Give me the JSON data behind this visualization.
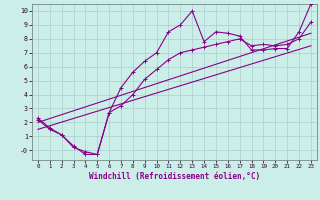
{
  "bg_color": "#cceee8",
  "grid_color": "#aacccc",
  "line_color": "#880088",
  "xlabel": "Windchill (Refroidissement éolien,°C)",
  "xlim": [
    -0.5,
    23.5
  ],
  "ylim": [
    -0.7,
    10.5
  ],
  "x_ticks": [
    0,
    1,
    2,
    3,
    4,
    5,
    6,
    7,
    8,
    9,
    10,
    11,
    12,
    13,
    14,
    15,
    16,
    17,
    18,
    19,
    20,
    21,
    22,
    23
  ],
  "y_ticks": [
    0,
    1,
    2,
    3,
    4,
    5,
    6,
    7,
    8,
    9,
    10
  ],
  "y_tick_labels": [
    "-0",
    "1",
    "2",
    "3",
    "4",
    "5",
    "6",
    "7",
    "8",
    "9",
    "10"
  ],
  "line1_x": [
    0,
    1,
    2,
    3,
    4,
    5,
    6,
    7,
    8,
    9,
    10,
    11,
    12,
    13,
    14,
    15,
    16,
    17,
    18,
    19,
    20,
    21,
    22,
    23
  ],
  "line1_y": [
    2.2,
    1.5,
    1.1,
    0.2,
    -0.1,
    -0.3,
    2.7,
    4.5,
    5.6,
    6.4,
    7.0,
    8.5,
    9.0,
    10.0,
    7.8,
    8.5,
    8.4,
    8.2,
    7.2,
    7.2,
    7.3,
    7.3,
    8.5,
    10.5
  ],
  "line2_x": [
    0,
    1,
    2,
    3,
    4,
    5,
    6,
    7,
    8,
    9,
    10,
    11,
    12,
    13,
    14,
    15,
    16,
    17,
    18,
    19,
    20,
    21,
    22,
    23
  ],
  "line2_y": [
    2.3,
    1.6,
    1.1,
    0.3,
    -0.3,
    -0.3,
    2.7,
    3.2,
    4.0,
    5.1,
    5.8,
    6.5,
    7.0,
    7.2,
    7.4,
    7.6,
    7.8,
    8.0,
    7.5,
    7.6,
    7.5,
    7.6,
    8.0,
    9.2
  ],
  "line3_x": [
    0,
    23
  ],
  "line3_y": [
    2.0,
    8.4
  ],
  "line4_x": [
    0,
    23
  ],
  "line4_y": [
    1.5,
    7.5
  ]
}
